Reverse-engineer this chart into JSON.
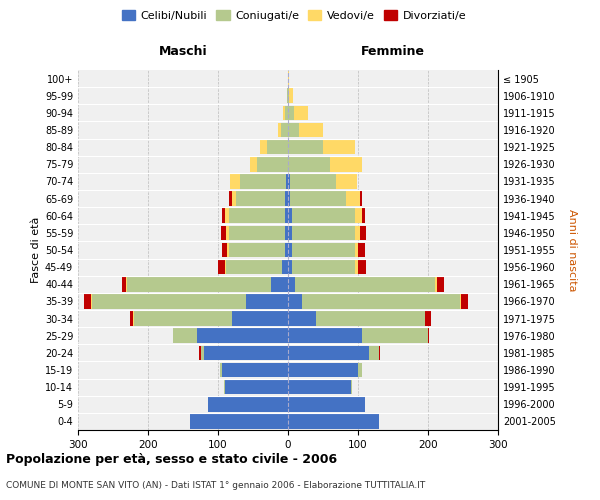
{
  "age_groups": [
    "0-4",
    "5-9",
    "10-14",
    "15-19",
    "20-24",
    "25-29",
    "30-34",
    "35-39",
    "40-44",
    "45-49",
    "50-54",
    "55-59",
    "60-64",
    "65-69",
    "70-74",
    "75-79",
    "80-84",
    "85-89",
    "90-94",
    "95-99",
    "100+"
  ],
  "birth_years": [
    "2001-2005",
    "1996-2000",
    "1991-1995",
    "1986-1990",
    "1981-1985",
    "1976-1980",
    "1971-1975",
    "1966-1970",
    "1961-1965",
    "1956-1960",
    "1951-1955",
    "1946-1950",
    "1941-1945",
    "1936-1940",
    "1931-1935",
    "1926-1930",
    "1921-1925",
    "1916-1920",
    "1911-1915",
    "1906-1910",
    "≤ 1905"
  ],
  "male": {
    "celibe": [
      140,
      115,
      90,
      95,
      120,
      130,
      80,
      60,
      25,
      8,
      5,
      5,
      5,
      5,
      3,
      0,
      0,
      0,
      0,
      0,
      0
    ],
    "coniugato": [
      0,
      0,
      1,
      2,
      5,
      35,
      140,
      220,
      205,
      80,
      80,
      80,
      80,
      70,
      65,
      45,
      30,
      10,
      5,
      1,
      0
    ],
    "vedovo": [
      0,
      0,
      0,
      0,
      0,
      0,
      1,
      2,
      2,
      2,
      2,
      3,
      5,
      5,
      15,
      10,
      10,
      5,
      2,
      0,
      0
    ],
    "divorziato": [
      0,
      0,
      0,
      0,
      2,
      0,
      5,
      10,
      5,
      10,
      8,
      8,
      5,
      5,
      0,
      0,
      0,
      0,
      0,
      0,
      0
    ]
  },
  "female": {
    "nubile": [
      130,
      110,
      90,
      100,
      115,
      105,
      40,
      20,
      10,
      5,
      5,
      5,
      5,
      3,
      3,
      0,
      0,
      0,
      0,
      0,
      0
    ],
    "coniugata": [
      0,
      0,
      2,
      5,
      15,
      95,
      155,
      225,
      200,
      90,
      90,
      90,
      90,
      80,
      65,
      60,
      50,
      15,
      8,
      2,
      0
    ],
    "vedova": [
      0,
      0,
      0,
      0,
      0,
      0,
      1,
      2,
      3,
      5,
      5,
      8,
      10,
      20,
      30,
      45,
      45,
      35,
      20,
      5,
      1
    ],
    "divorziata": [
      0,
      0,
      0,
      0,
      2,
      2,
      8,
      10,
      10,
      12,
      10,
      8,
      5,
      3,
      0,
      0,
      0,
      0,
      0,
      0,
      0
    ]
  },
  "colors": {
    "celibe": "#4472c4",
    "coniugato": "#b5c98e",
    "vedovo": "#ffd966",
    "divorziato": "#c00000"
  },
  "xlim": 300,
  "title": "Popolazione per età, sesso e stato civile - 2006",
  "subtitle": "COMUNE DI MONTE SAN VITO (AN) - Dati ISTAT 1° gennaio 2006 - Elaborazione TUTTITALIA.IT",
  "ylabel_left": "Fasce di età",
  "ylabel_right": "Anni di nascita",
  "header_male": "Maschi",
  "header_female": "Femmine",
  "legend_labels": [
    "Celibi/Nubili",
    "Coniugati/e",
    "Vedovi/e",
    "Divorziati/e"
  ],
  "background_color": "#ffffff",
  "plot_bg_color": "#f0f0f0"
}
